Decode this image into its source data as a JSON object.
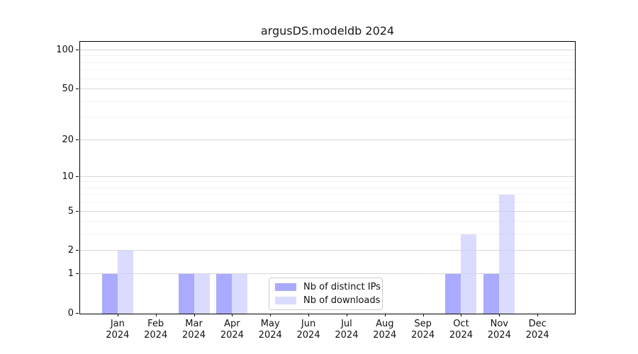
{
  "title": "argusDS.modeldb 2024",
  "colors": {
    "distinct_ips": "rgba(134,134,255,0.7)",
    "downloads": "rgba(204,204,255,0.7)",
    "grid_major": "#d7d7d7",
    "grid_minor": "#f1f1f1",
    "axis": "#000000",
    "legend_border": "#cccccc",
    "background": "#ffffff"
  },
  "chart_data": {
    "type": "bar",
    "title": "argusDS.modeldb 2024",
    "categories": [
      "Jan",
      "Feb",
      "Mar",
      "Apr",
      "May",
      "Jun",
      "Jul",
      "Aug",
      "Sep",
      "Oct",
      "Nov",
      "Dec"
    ],
    "x_sub_label": "2024",
    "series": [
      {
        "name": "Nb of distinct IPs",
        "color": "rgba(134,134,255,0.7)",
        "values": [
          1,
          0,
          1,
          1,
          0,
          0,
          0,
          0,
          0,
          1,
          1,
          0
        ]
      },
      {
        "name": "Nb of downloads",
        "color": "rgba(204,204,255,0.7)",
        "values": [
          2,
          0,
          1,
          1,
          0,
          0,
          0,
          0,
          0,
          3,
          7,
          0
        ]
      }
    ],
    "xlabel": "",
    "ylabel": "",
    "y_scale": "log1p",
    "ylim": [
      0,
      116
    ],
    "y_ticks": [
      0,
      1,
      2,
      5,
      10,
      20,
      50,
      100
    ],
    "y_minor_gridlines": [
      3,
      4,
      6,
      7,
      8,
      9,
      30,
      40,
      60,
      70,
      80,
      90
    ],
    "grid": true,
    "legend_position": "lower center"
  }
}
